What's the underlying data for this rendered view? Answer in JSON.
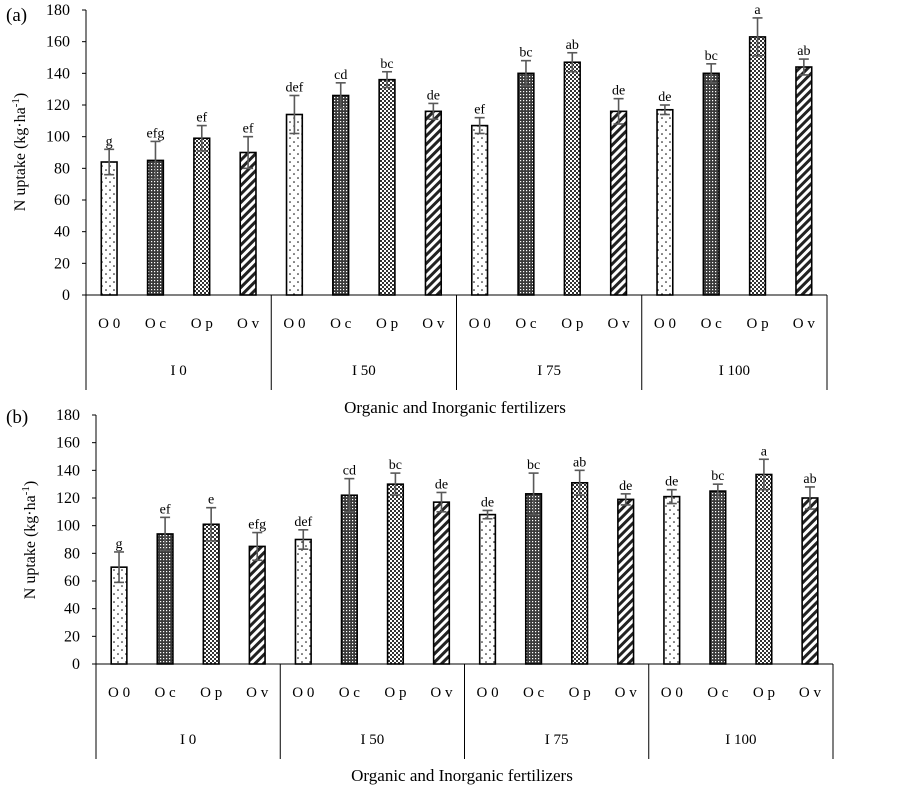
{
  "chart_data": [
    {
      "type": "bar",
      "panel_label": "(a)",
      "ylabel": "N uptake (kg·ha",
      "ylabel_sup": "-1",
      "ylabel_close": ")",
      "xlabel": "Organic and Inorganic fertilizers",
      "ylim": [
        0,
        180
      ],
      "yticks": [
        "0",
        "20",
        "40",
        "60",
        "80",
        "100",
        "120",
        "140",
        "160",
        "180"
      ],
      "groups": [
        "I 0",
        "I 50",
        "I 75",
        "I 100"
      ],
      "categories": [
        "O 0",
        "O c",
        "O p",
        "O v"
      ],
      "values": [
        [
          84,
          85,
          99,
          90
        ],
        [
          114,
          126,
          136,
          116
        ],
        [
          107,
          140,
          147,
          116
        ],
        [
          117,
          140,
          163,
          144
        ]
      ],
      "errors": [
        [
          8,
          12,
          8,
          10
        ],
        [
          12,
          8,
          5,
          5
        ],
        [
          5,
          8,
          6,
          8
        ],
        [
          3,
          6,
          12,
          5
        ]
      ],
      "letters": [
        [
          "g",
          "efg",
          "ef",
          "ef"
        ],
        [
          "def",
          "cd",
          "bc",
          "de"
        ],
        [
          "ef",
          "bc",
          "ab",
          "de"
        ],
        [
          "de",
          "bc",
          "a",
          "ab"
        ]
      ]
    },
    {
      "type": "bar",
      "panel_label": "(b)",
      "ylabel": "N uptake (kg·ha",
      "ylabel_sup": "-1",
      "ylabel_close": ")",
      "xlabel": "Organic and Inorganic fertilizers",
      "ylim": [
        0,
        180
      ],
      "yticks": [
        "0",
        "20",
        "40",
        "60",
        "80",
        "100",
        "120",
        "140",
        "160",
        "180"
      ],
      "groups": [
        "I 0",
        "I 50",
        "I 75",
        "I 100"
      ],
      "categories": [
        "O 0",
        "O c",
        "O p",
        "O v"
      ],
      "values": [
        [
          70,
          94,
          101,
          85
        ],
        [
          90,
          122,
          130,
          117
        ],
        [
          108,
          123,
          131,
          119
        ],
        [
          121,
          125,
          137,
          120
        ]
      ],
      "errors": [
        [
          11,
          12,
          12,
          10
        ],
        [
          7,
          12,
          8,
          7
        ],
        [
          3,
          15,
          9,
          4
        ],
        [
          5,
          5,
          11,
          8
        ]
      ],
      "letters": [
        [
          "g",
          "ef",
          "e",
          "efg"
        ],
        [
          "def",
          "cd",
          "bc",
          "de"
        ],
        [
          "de",
          "bc",
          "ab",
          "de"
        ],
        [
          "de",
          "bc",
          "a",
          "ab"
        ]
      ]
    }
  ],
  "styles": {
    "bar_fill": "#ffffff",
    "bar_stroke": "#000000",
    "error_color": "#595959",
    "axis_color": "#000000",
    "patterns": [
      "sparse-dots-pattern",
      "dense-grid-pattern",
      "checker-dots-pattern",
      "diagonal-stripes-pattern"
    ]
  }
}
